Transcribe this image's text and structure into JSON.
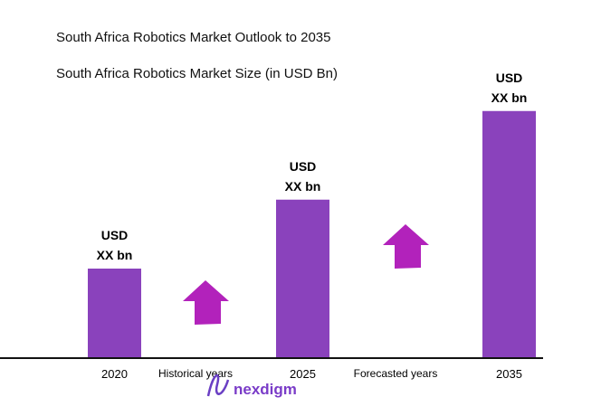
{
  "chart_data": {
    "type": "bar",
    "title": "South Africa Robotics Market Outlook to 2035",
    "subtitle": "South Africa Robotics Market Size (in USD Bn)",
    "categories": [
      "2020",
      "2025",
      "2035"
    ],
    "relative_heights": [
      1.0,
      1.77,
      2.76
    ],
    "data_labels": [
      [
        "USD",
        "XX bn"
      ],
      [
        "USD",
        "XX bn"
      ],
      [
        "USD",
        "XX bn"
      ]
    ],
    "period_labels": [
      "Historical years",
      "Forecasted years"
    ],
    "grid": false,
    "bar_color": "#8a42bc",
    "arrow_color": "#b222bb"
  },
  "brand": {
    "name": "nexdigm"
  }
}
